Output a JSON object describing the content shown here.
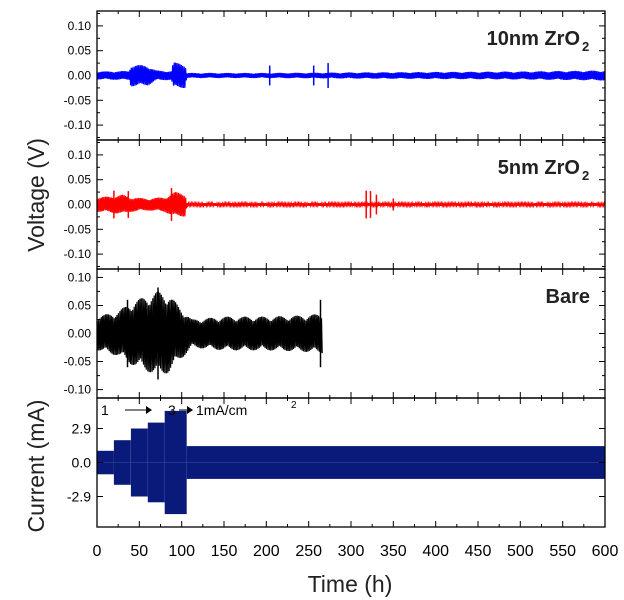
{
  "chart_data": {
    "type": "line",
    "xlabel": "Time (h)",
    "xlim": [
      0,
      600
    ],
    "x_ticks": [
      "0",
      "50",
      "100",
      "150",
      "200",
      "250",
      "300",
      "350",
      "400",
      "450",
      "500",
      "550",
      "600"
    ],
    "voltage_axis_label": "Voltage (V)",
    "current_axis_label": "Current (mA)",
    "voltage_ticks": [
      "0.10",
      "0.05",
      "0.00",
      "-0.05",
      "-0.10"
    ],
    "current_ticks": [
      "2.9",
      "0.0",
      "-2.9"
    ],
    "panels": [
      {
        "label_main": "10nm ZrO",
        "label_sub": "2",
        "color": "#0000ff",
        "ylim": [
          -0.13,
          0.13
        ],
        "time_range": [
          0,
          600
        ],
        "envelope": [
          [
            0,
            0.008
          ],
          [
            38,
            0.009
          ],
          [
            40,
            0.022
          ],
          [
            60,
            0.02
          ],
          [
            70,
            0.01
          ],
          [
            88,
            0.009
          ],
          [
            90,
            0.026
          ],
          [
            104,
            0.025
          ],
          [
            106,
            0.005
          ],
          [
            200,
            0.005
          ],
          [
            300,
            0.006
          ],
          [
            400,
            0.007
          ],
          [
            500,
            0.008
          ],
          [
            600,
            0.01
          ]
        ],
        "spikes": [
          [
            204,
            0.02
          ],
          [
            256,
            0.02
          ],
          [
            273,
            0.025
          ]
        ]
      },
      {
        "label_main": "5nm ZrO",
        "label_sub": "2",
        "color": "#ff0000",
        "ylim": [
          -0.13,
          0.13
        ],
        "time_range": [
          0,
          600
        ],
        "envelope": [
          [
            0,
            0.015
          ],
          [
            15,
            0.016
          ],
          [
            30,
            0.02
          ],
          [
            38,
            0.015
          ],
          [
            60,
            0.012
          ],
          [
            80,
            0.015
          ],
          [
            92,
            0.025
          ],
          [
            104,
            0.024
          ],
          [
            106,
            0.003
          ],
          [
            600,
            0.003
          ]
        ],
        "spikes": [
          [
            20,
            0.028
          ],
          [
            37,
            0.027
          ],
          [
            88,
            0.033
          ],
          [
            318,
            0.028
          ],
          [
            323,
            0.027
          ],
          [
            330,
            0.02
          ],
          [
            350,
            0.012
          ]
        ]
      },
      {
        "label_main": "Bare",
        "label_sub": "",
        "color": "#000000",
        "ylim": [
          -0.115,
          0.115
        ],
        "time_range": [
          0,
          266
        ],
        "envelope": [
          [
            0,
            0.03
          ],
          [
            25,
            0.04
          ],
          [
            40,
            0.055
          ],
          [
            55,
            0.065
          ],
          [
            72,
            0.075
          ],
          [
            85,
            0.07
          ],
          [
            96,
            0.05
          ],
          [
            103,
            0.04
          ],
          [
            112,
            0.025
          ],
          [
            150,
            0.03
          ],
          [
            200,
            0.03
          ],
          [
            240,
            0.032
          ],
          [
            265,
            0.035
          ]
        ],
        "spikes": [
          [
            36,
            0.06
          ],
          [
            72,
            0.082
          ],
          [
            264,
            0.06
          ]
        ]
      }
    ],
    "current": {
      "color": "#0a1a7a",
      "ylim": [
        -5.5,
        5.5
      ],
      "steps": [
        {
          "from": 0,
          "to": 20,
          "value": 1.0
        },
        {
          "from": 20,
          "to": 40,
          "value": 1.9
        },
        {
          "from": 40,
          "to": 60,
          "value": 2.9
        },
        {
          "from": 60,
          "to": 80,
          "value": 3.4
        },
        {
          "from": 80,
          "to": 106,
          "value": 4.4
        },
        {
          "from": 106,
          "to": 600,
          "value": 1.4
        }
      ],
      "annotation": {
        "a": "1",
        "b": "3",
        "c": "1mA/cm",
        "sup": "2"
      }
    }
  }
}
